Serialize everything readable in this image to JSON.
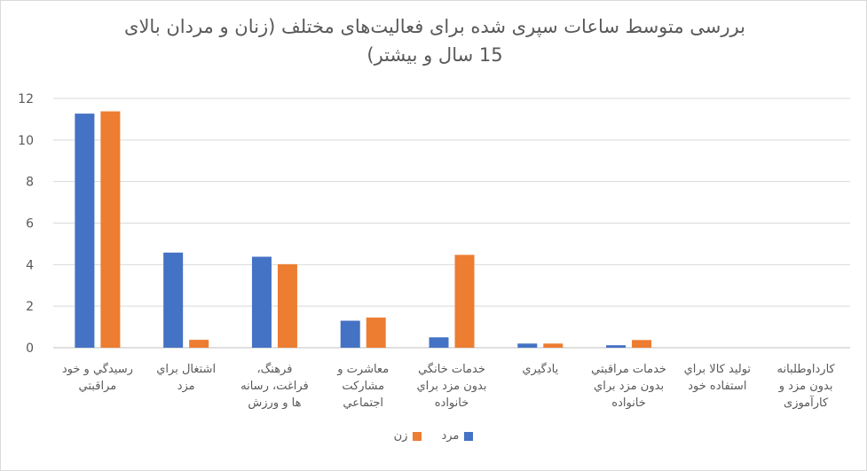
{
  "chart_data": {
    "type": "bar",
    "title_line1": "بررسی متوسط ساعات سپری شده برای فعالیت‌های مختلف (زنان و مردان بالای",
    "title_line2": "15 سال و بیشتر)",
    "categories": [
      [
        "رسیدگي و خود",
        "مراقبتي"
      ],
      [
        "اشتغال براي",
        "مزد"
      ],
      [
        "فرهنگ،",
        "فراغت، رسانه",
        "ها و ورزش"
      ],
      [
        "معاشرت و",
        "مشاركت",
        "اجتماعي"
      ],
      [
        "خدمات خانگي",
        "بدون مزد براي",
        "خانواده"
      ],
      [
        "يادگيري"
      ],
      [
        "خدمات مراقبتي",
        "بدون مزد براي",
        "خانواده"
      ],
      [
        "توليد كالا براي",
        "استفاده خود"
      ],
      [
        "كارداوطلبانه",
        "بدون مزد و",
        "كارآموزی"
      ]
    ],
    "series": [
      {
        "name": "مرد",
        "color": "#4472C4",
        "values": [
          11.27,
          4.58,
          4.38,
          1.3,
          0.5,
          0.2,
          0.12,
          0.0,
          0.0
        ]
      },
      {
        "name": "زن",
        "color": "#ED7D31",
        "values": [
          11.38,
          0.38,
          4.02,
          1.45,
          4.47,
          0.2,
          0.37,
          0.0,
          0.0
        ]
      }
    ],
    "ylim": [
      0,
      12
    ],
    "yticks": [
      "0",
      "2",
      "4",
      "6",
      "8",
      "10",
      "12"
    ],
    "grid": true,
    "legend_position": "bottom"
  }
}
